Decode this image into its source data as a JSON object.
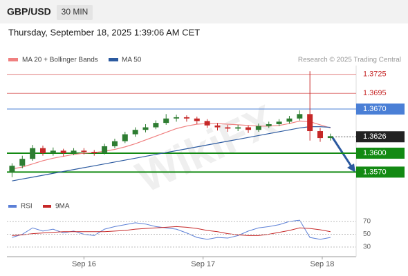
{
  "header": {
    "symbol": "GBP/USD",
    "timeframe": "30 MIN",
    "datetime": "Thursday, September 18, 2025 1:39:06 AM CET"
  },
  "legend": {
    "ma20": "MA 20 + Bollinger Bands",
    "ma20_color": "#f08080",
    "ma50": "MA 50",
    "ma50_color": "#2c5aa0",
    "credit": "Research © 2025 Trading Central"
  },
  "watermark": "WikiFX",
  "chart_data": [
    {
      "type": "candlestick",
      "xlim": [
        0,
        34
      ],
      "ylim": [
        1.3542,
        1.3739
      ],
      "open": [
        1.357,
        1.358,
        1.3591,
        1.3608,
        1.36,
        1.3604,
        1.36,
        1.3604,
        1.3602,
        1.36,
        1.3611,
        1.3619,
        1.363,
        1.3637,
        1.3641,
        1.3648,
        1.3655,
        1.3657,
        1.3655,
        1.3651,
        1.3644,
        1.3641,
        1.3639,
        1.3641,
        1.3637,
        1.3643,
        1.3646,
        1.365,
        1.3655,
        1.3662,
        1.3635,
        1.3624
      ],
      "high": [
        1.3584,
        1.3596,
        1.3613,
        1.3612,
        1.3609,
        1.3607,
        1.3608,
        1.3608,
        1.3605,
        1.3615,
        1.3623,
        1.3634,
        1.3641,
        1.3646,
        1.3652,
        1.3662,
        1.3661,
        1.366,
        1.3658,
        1.3654,
        1.3648,
        1.3645,
        1.3645,
        1.3644,
        1.3647,
        1.365,
        1.3654,
        1.3659,
        1.3668,
        1.373,
        1.364,
        1.3631
      ],
      "low": [
        1.3562,
        1.3576,
        1.3588,
        1.3596,
        1.3596,
        1.3595,
        1.3597,
        1.3598,
        1.3596,
        1.3598,
        1.3608,
        1.3616,
        1.3626,
        1.3633,
        1.3638,
        1.3645,
        1.365,
        1.365,
        1.3646,
        1.364,
        1.3636,
        1.3634,
        1.3635,
        1.3632,
        1.3634,
        1.364,
        1.3643,
        1.3647,
        1.3652,
        1.362,
        1.3618,
        1.362
      ],
      "close": [
        1.358,
        1.3591,
        1.3608,
        1.36,
        1.3604,
        1.36,
        1.3604,
        1.3602,
        1.36,
        1.3611,
        1.3619,
        1.363,
        1.3637,
        1.3641,
        1.3648,
        1.3655,
        1.3657,
        1.3655,
        1.3651,
        1.3644,
        1.3641,
        1.3639,
        1.3641,
        1.3637,
        1.3643,
        1.3646,
        1.365,
        1.3655,
        1.3662,
        1.3635,
        1.3624,
        1.3627
      ],
      "up_color": "#2e7d32",
      "down_color": "#c62828",
      "series": [
        {
          "name": "MA 20",
          "color": "#f08080",
          "values": [
            1.3575,
            1.3578,
            1.3583,
            1.3588,
            1.3592,
            1.3595,
            1.3598,
            1.36,
            1.3601,
            1.3603,
            1.3606,
            1.361,
            1.3615,
            1.3621,
            1.3627,
            1.3633,
            1.3639,
            1.3643,
            1.3646,
            1.3647,
            1.3647,
            1.3646,
            1.3645,
            1.3644,
            1.3643,
            1.3643,
            1.3644,
            1.3647,
            1.3651,
            1.365,
            1.3645,
            1.364
          ]
        },
        {
          "name": "MA 50",
          "color": "#2c5aa0",
          "values": [
            1.3556,
            1.3559,
            1.3562,
            1.3565,
            1.3568,
            1.3571,
            1.3574,
            1.3577,
            1.358,
            1.3583,
            1.3586,
            1.3589,
            1.3592,
            1.3595,
            1.3598,
            1.3601,
            1.3604,
            1.3607,
            1.361,
            1.3613,
            1.3616,
            1.3619,
            1.3622,
            1.3625,
            1.3628,
            1.3631,
            1.3634,
            1.3637,
            1.364,
            1.3642,
            1.3642,
            1.3641
          ]
        }
      ],
      "levels": [
        {
          "value": 1.3725,
          "label": "1.3725"
        },
        {
          "value": 1.3695,
          "label": "1.3695"
        },
        {
          "value": 1.367,
          "label": "1.3670"
        },
        {
          "value": 1.36,
          "label": "1.3600"
        },
        {
          "value": 1.357,
          "label": "1.3570"
        }
      ],
      "level_colors": [
        "#e07b7b",
        "#e07b7b",
        "#4a7fd6",
        "#138a13",
        "#138a13"
      ],
      "level_boxed": [
        false,
        false,
        true,
        true,
        true
      ],
      "current": {
        "value": 1.3626,
        "label": "1.3626"
      },
      "current_color": "#222222"
    },
    {
      "type": "line",
      "xlim": [
        0,
        34
      ],
      "ylim": [
        10,
        90
      ],
      "yticks": [
        30,
        50,
        70
      ],
      "xticks": [
        {
          "value": 7.5,
          "label": "Sep 16"
        },
        {
          "value": 19.1,
          "label": "Sep 17"
        },
        {
          "value": 30.7,
          "label": "Sep 18"
        }
      ],
      "series": [
        {
          "name": "RSI",
          "color": "#5b7fd6",
          "values": [
            45,
            50,
            60,
            55,
            58,
            52,
            55,
            50,
            48,
            58,
            62,
            65,
            68,
            66,
            62,
            60,
            58,
            52,
            45,
            42,
            45,
            44,
            48,
            55,
            60,
            62,
            65,
            70,
            72,
            45,
            42,
            45
          ]
        },
        {
          "name": "9MA",
          "color": "#c62828",
          "values": [
            48,
            49,
            51,
            52,
            53,
            54,
            54,
            54,
            54,
            54,
            55,
            56,
            58,
            59,
            60,
            61,
            62,
            61,
            59,
            56,
            54,
            51,
            49,
            48,
            48,
            50,
            53,
            56,
            60,
            59,
            57,
            54
          ]
        }
      ]
    }
  ]
}
